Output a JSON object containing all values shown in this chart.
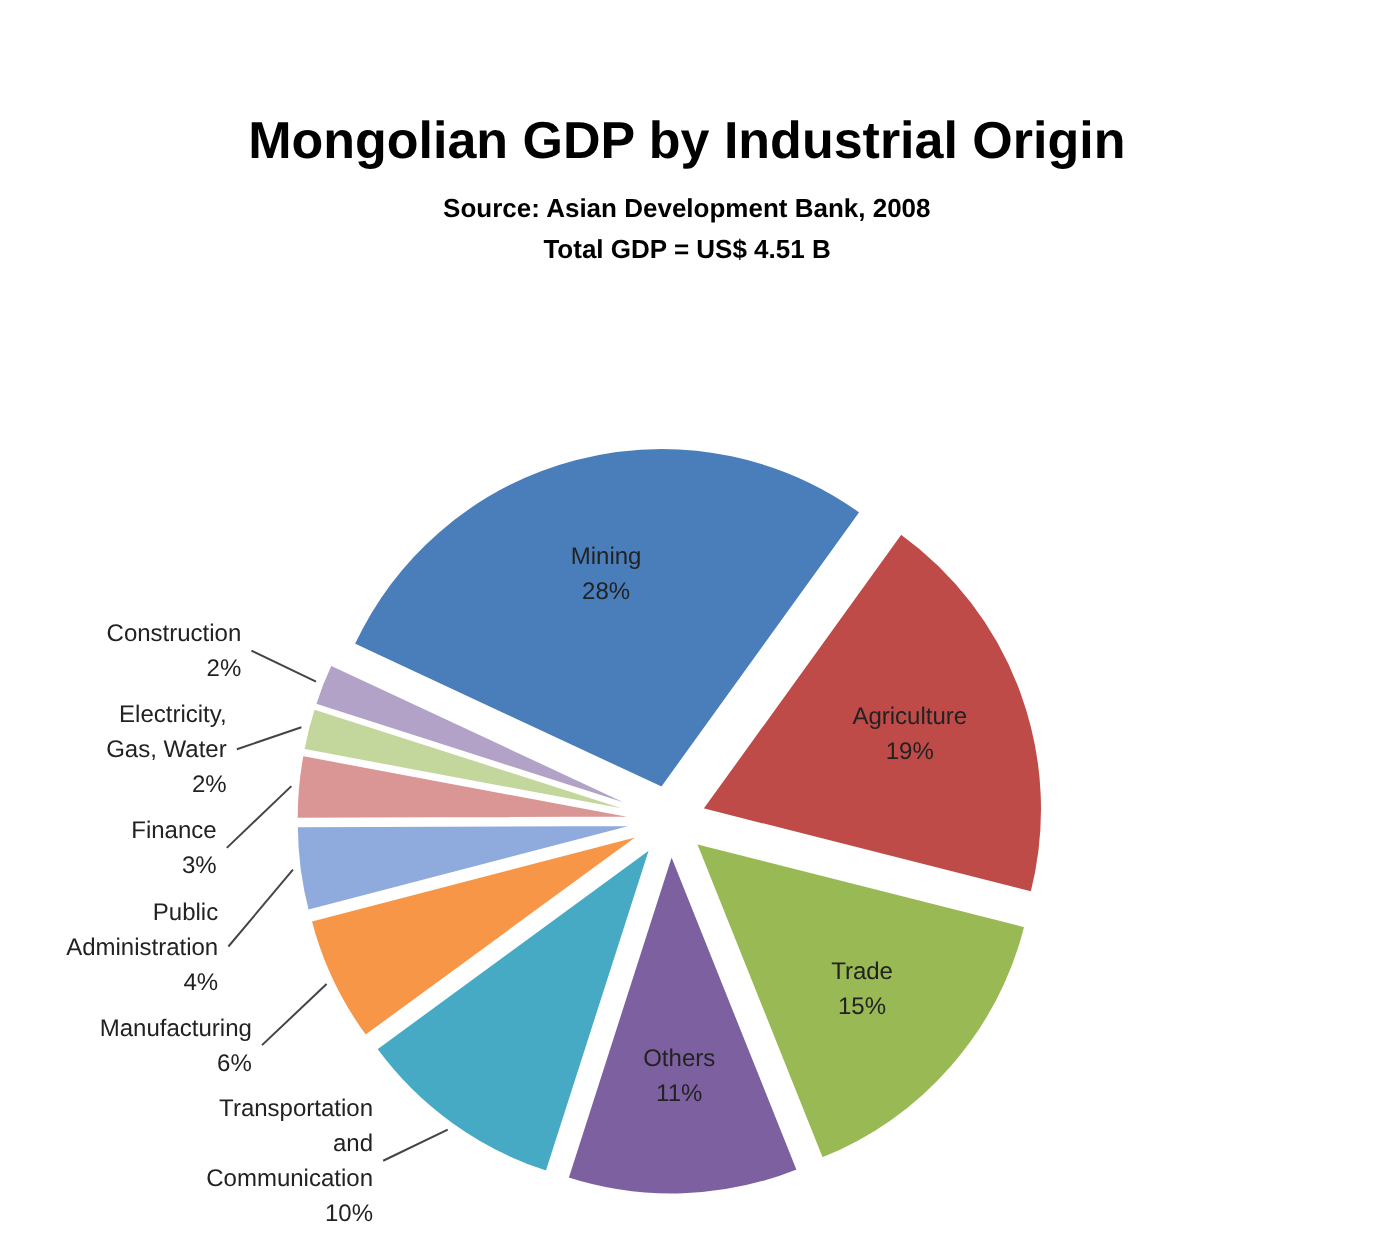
{
  "chart_data": {
    "type": "pie",
    "title": "Mongolian GDP by Industrial Origin",
    "subtitle": "Source: Asian Development Bank, 2008",
    "annotations": [
      "Total GDP = US$ 4.51 B"
    ],
    "categories": [
      "Mining",
      "Agriculture",
      "Trade",
      "Others",
      "Transportation and Communication",
      "Manufacturing",
      "Public Administration",
      "Finance",
      "Electricity, Gas, Water",
      "Construction"
    ],
    "values": [
      28,
      19,
      15,
      11,
      10,
      6,
      4,
      3,
      2,
      2
    ],
    "value_labels": [
      "28%",
      "19%",
      "15%",
      "11%",
      "10%",
      "6%",
      "4%",
      "3%",
      "2%",
      "2%"
    ],
    "colors": [
      "#4a7ebb",
      "#be4b48",
      "#98b954",
      "#7d60a0",
      "#46aac5",
      "#f79646",
      "#8faadc",
      "#da9694",
      "#c3d69b",
      "#b3a2c7"
    ]
  }
}
